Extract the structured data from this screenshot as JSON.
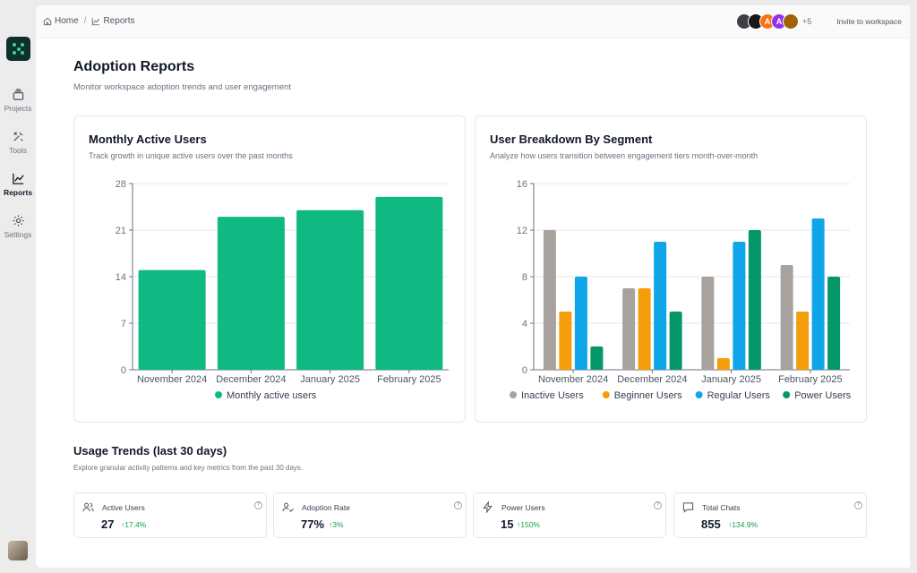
{
  "sidebar": {
    "items": [
      {
        "label": "Projects",
        "icon": "layers-icon"
      },
      {
        "label": "Tools",
        "icon": "tools-icon"
      },
      {
        "label": "Reports",
        "icon": "chart-line-icon"
      },
      {
        "label": "Settings",
        "icon": "gear-icon"
      }
    ],
    "active": "Reports"
  },
  "breadcrumb": {
    "home": "Home",
    "separator": "/",
    "current": "Reports"
  },
  "header": {
    "more_count": "+5",
    "invite_label": "Invite to workspace"
  },
  "page": {
    "title": "Adoption Reports",
    "subtitle": "Monitor workspace adoption trends and user engagement"
  },
  "colors": {
    "accent": "#10b981",
    "inactive": "#a8a29e",
    "beginner": "#f59e0b",
    "regular": "#0ea5e9",
    "power": "#059669"
  },
  "card1": {
    "title": "Monthly Active Users",
    "subtitle": "Track growth in unique active users over the past months"
  },
  "card2": {
    "title": "User Breakdown By Segment",
    "subtitle": "Analyze how users transition between engagement tiers month-over-month"
  },
  "chart_data": [
    {
      "type": "bar",
      "categories": [
        "November 2024",
        "December 2024",
        "January 2025",
        "February 2025"
      ],
      "series": [
        {
          "name": "Monthly active users",
          "values": [
            15,
            23,
            24,
            26
          ]
        }
      ],
      "yticks": [
        0,
        7,
        14,
        21,
        28
      ],
      "ylim": [
        0,
        28
      ],
      "grid": true,
      "legend": "bottom"
    },
    {
      "type": "bar",
      "categories": [
        "November 2024",
        "December 2024",
        "January 2025",
        "February 2025"
      ],
      "series": [
        {
          "name": "Inactive Users",
          "values": [
            12,
            7,
            8,
            9
          ]
        },
        {
          "name": "Beginner Users",
          "values": [
            5,
            7,
            1,
            5
          ]
        },
        {
          "name": "Regular Users",
          "values": [
            8,
            11,
            11,
            13
          ]
        },
        {
          "name": "Power Users",
          "values": [
            2,
            5,
            12,
            8
          ]
        }
      ],
      "yticks": [
        0,
        4,
        8,
        12,
        16
      ],
      "ylim": [
        0,
        16
      ],
      "grid": true,
      "legend": "bottom"
    }
  ],
  "usage": {
    "title": "Usage Trends (last 30 days)",
    "subtitle": "Explore granular activity patterns and key metrics from the past 30 days.",
    "stats": [
      {
        "label": "Active Users",
        "value": "27",
        "change": "↑17.4%",
        "icon": "users-icon"
      },
      {
        "label": "Adoption Rate",
        "value": "77%",
        "change": "↑3%",
        "icon": "user-check-icon"
      },
      {
        "label": "Power Users",
        "value": "15",
        "change": "↑150%",
        "icon": "lightning-icon"
      },
      {
        "label": "Total Chats",
        "value": "855",
        "change": "↑134.9%",
        "icon": "chat-icon"
      }
    ]
  }
}
